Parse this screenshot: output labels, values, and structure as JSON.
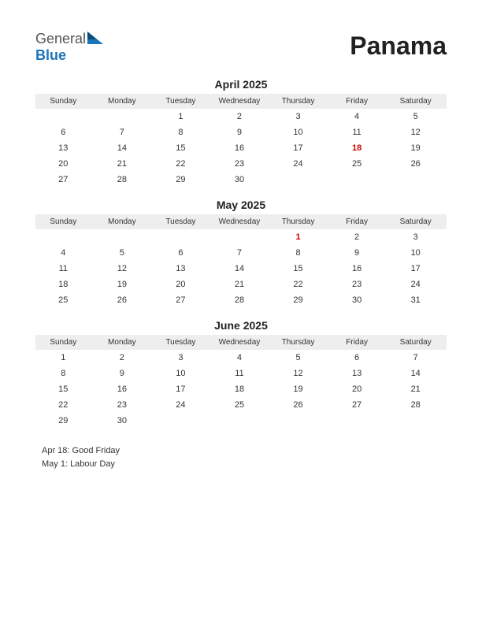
{
  "logo": {
    "word1": "General",
    "word2": "Blue"
  },
  "country": "Panama",
  "weekdays": [
    "Sunday",
    "Monday",
    "Tuesday",
    "Wednesday",
    "Thursday",
    "Friday",
    "Saturday"
  ],
  "months": [
    {
      "title": "April 2025",
      "holiday_dates": [
        18
      ],
      "weeks": [
        [
          "",
          "",
          "1",
          "2",
          "3",
          "4",
          "5"
        ],
        [
          "6",
          "7",
          "8",
          "9",
          "10",
          "11",
          "12"
        ],
        [
          "13",
          "14",
          "15",
          "16",
          "17",
          "18",
          "19"
        ],
        [
          "20",
          "21",
          "22",
          "23",
          "24",
          "25",
          "26"
        ],
        [
          "27",
          "28",
          "29",
          "30",
          "",
          "",
          ""
        ]
      ]
    },
    {
      "title": "May 2025",
      "holiday_dates": [
        1
      ],
      "weeks": [
        [
          "",
          "",
          "",
          "",
          "1",
          "2",
          "3"
        ],
        [
          "4",
          "5",
          "6",
          "7",
          "8",
          "9",
          "10"
        ],
        [
          "11",
          "12",
          "13",
          "14",
          "15",
          "16",
          "17"
        ],
        [
          "18",
          "19",
          "20",
          "21",
          "22",
          "23",
          "24"
        ],
        [
          "25",
          "26",
          "27",
          "28",
          "29",
          "30",
          "31"
        ]
      ]
    },
    {
      "title": "June 2025",
      "holiday_dates": [],
      "weeks": [
        [
          "1",
          "2",
          "3",
          "4",
          "5",
          "6",
          "7"
        ],
        [
          "8",
          "9",
          "10",
          "11",
          "12",
          "13",
          "14"
        ],
        [
          "15",
          "16",
          "17",
          "18",
          "19",
          "20",
          "21"
        ],
        [
          "22",
          "23",
          "24",
          "25",
          "26",
          "27",
          "28"
        ],
        [
          "29",
          "30",
          "",
          "",
          "",
          "",
          ""
        ]
      ]
    }
  ],
  "holidays_list": [
    "Apr 18: Good Friday",
    "May 1: Labour Day"
  ],
  "colors": {
    "header_bg": "#eeeeee",
    "text": "#333333",
    "holiday": "#cc0000",
    "logo_blue": "#1b75bb",
    "logo_gray": "#555555"
  }
}
